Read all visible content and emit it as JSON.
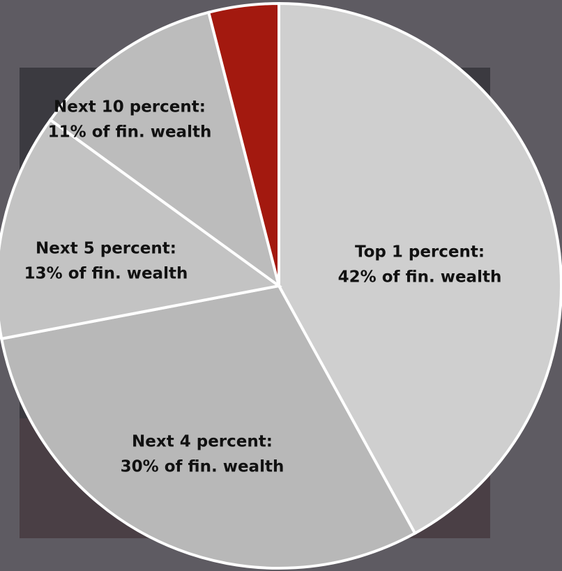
{
  "chart_data": {
    "type": "pie",
    "categories": [
      "Top 1 percent:",
      "Next 4 percent:",
      "Next 5 percent:",
      "Next 10 percent:",
      null
    ],
    "values": [
      42,
      30,
      13,
      11,
      4
    ],
    "value_labels": [
      "42% of fin. wealth",
      "30% of fin. wealth",
      "13% of fin. wealth",
      "11% of fin. wealth",
      null
    ],
    "colors": [
      "#cfcfcf",
      "#b8b8b8",
      "#c3c3c3",
      "#bcbcbc",
      "#a3190f"
    ]
  }
}
